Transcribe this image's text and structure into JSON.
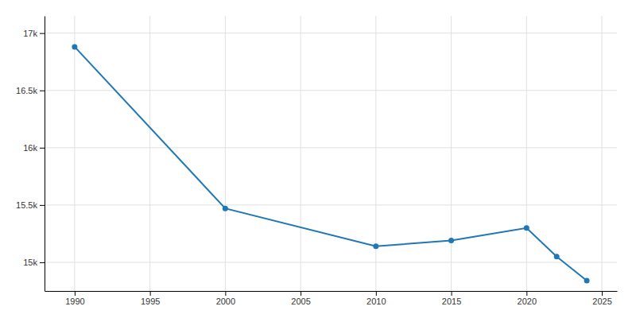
{
  "chart_data": {
    "type": "line",
    "x": [
      1990,
      2000,
      2010,
      2015,
      2020,
      2022,
      2024
    ],
    "values": [
      16880,
      15470,
      15140,
      15190,
      15300,
      15050,
      14840
    ],
    "marker": "circle",
    "xlim": [
      1988,
      2026
    ],
    "ylim": [
      14750,
      17150
    ],
    "xticks": [
      1990,
      1995,
      2000,
      2005,
      2010,
      2015,
      2020,
      2025
    ],
    "yticks": [
      {
        "value": 15000,
        "label": "15k"
      },
      {
        "value": 15500,
        "label": "15.5k"
      },
      {
        "value": 16000,
        "label": "16k"
      },
      {
        "value": 16500,
        "label": "16.5k"
      },
      {
        "value": 17000,
        "label": "17k"
      }
    ],
    "grid": true
  }
}
